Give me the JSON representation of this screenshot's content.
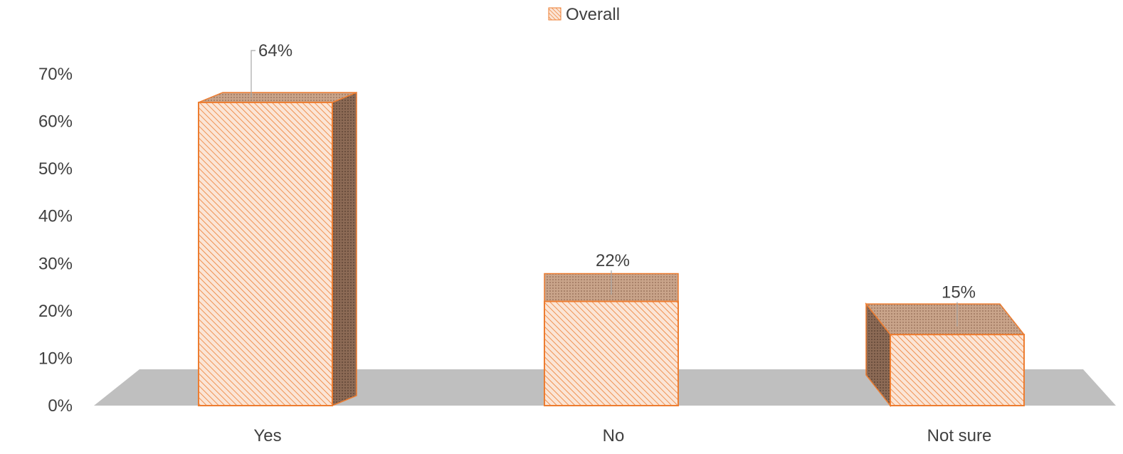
{
  "chart_data": {
    "type": "bar",
    "categories": [
      "Yes",
      "No",
      "Not sure"
    ],
    "series": [
      {
        "name": "Overall",
        "values": [
          64,
          22,
          15
        ]
      }
    ],
    "data_labels": [
      "64%",
      "22%",
      "15%"
    ],
    "y_ticks": [
      "0%",
      "10%",
      "20%",
      "30%",
      "40%",
      "50%",
      "60%",
      "70%"
    ],
    "ylim": [
      0,
      70
    ],
    "title": "",
    "xlabel": "",
    "ylabel": "",
    "legend_position": "top",
    "grid": false,
    "style": "3d-column",
    "colors": {
      "bar_outline": "#ED7D31",
      "bar_front_fill": "#FBE5D6",
      "bar_hatch": "#ED7D31",
      "bar_top_fill": "#C9A48A",
      "bar_side_fill": "#8C6A55",
      "floor": "#BFBFBF",
      "leader_line": "#A6A6A6",
      "text": "#404040"
    }
  }
}
